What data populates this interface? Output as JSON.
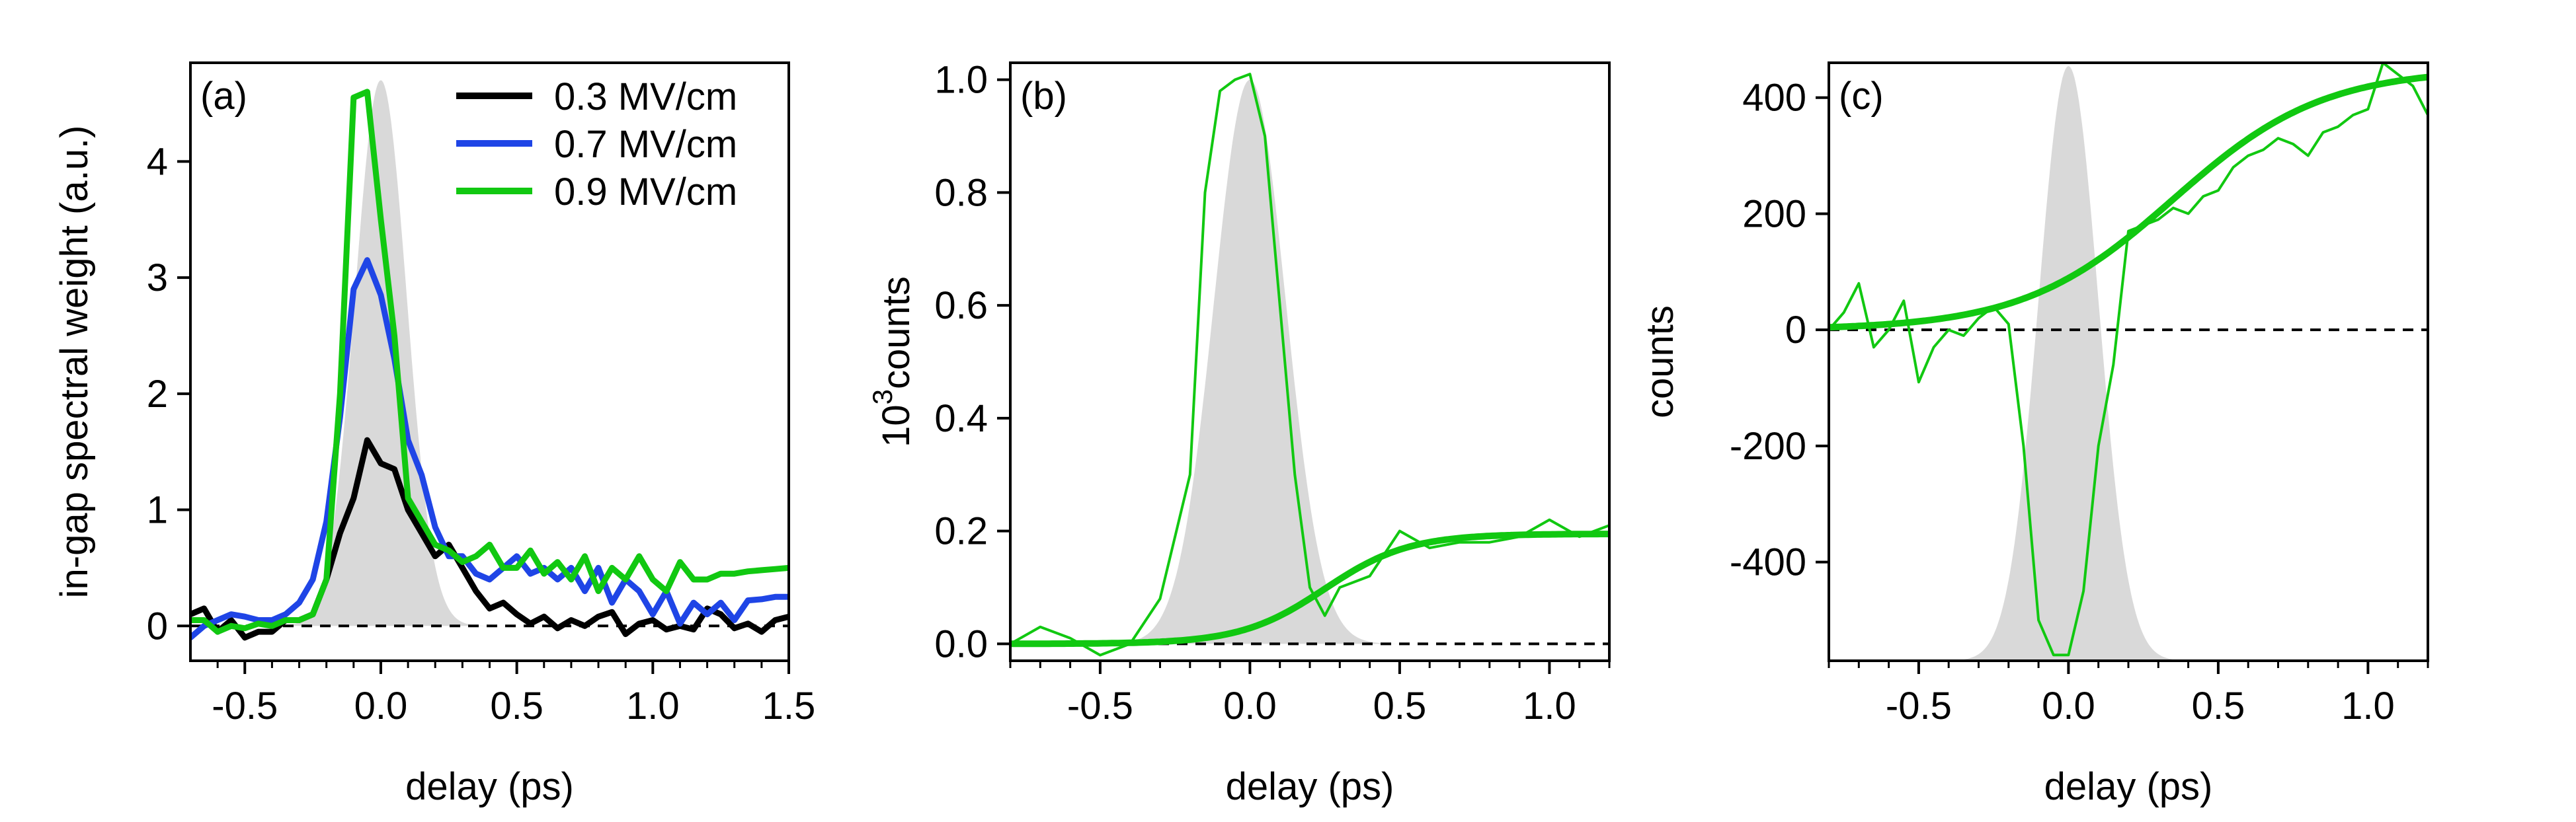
{
  "chart_data": [
    {
      "panel": "(a)",
      "type": "line",
      "xlabel": "delay (ps)",
      "ylabel": "in-gap spectral weight  (a.u.)",
      "xlim": [
        -0.7,
        1.5
      ],
      "ylim": [
        -0.3,
        4.85
      ],
      "xticks": [
        "-0.5",
        "0.0",
        "0.5",
        "1.0",
        "1.5"
      ],
      "xtick_values": [
        -0.5,
        0,
        0.5,
        1.0,
        1.5
      ],
      "yticks": [
        "0",
        "1",
        "2",
        "3",
        "4"
      ],
      "ytick_values": [
        0,
        1,
        2,
        3,
        4
      ],
      "zero_line": true,
      "legend_position": "top-right",
      "shaded_pulse": {
        "color": "#d9d9d9",
        "center": 0.0,
        "sigma": 0.095,
        "amplitude": 4.7
      },
      "series": [
        {
          "name": "0.3 MV/cm",
          "color": "#000000",
          "x": [
            -0.7,
            -0.65,
            -0.6,
            -0.55,
            -0.5,
            -0.45,
            -0.4,
            -0.35,
            -0.3,
            -0.25,
            -0.2,
            -0.15,
            -0.1,
            -0.05,
            0,
            0.05,
            0.1,
            0.15,
            0.2,
            0.25,
            0.3,
            0.35,
            0.4,
            0.45,
            0.5,
            0.55,
            0.6,
            0.65,
            0.7,
            0.75,
            0.8,
            0.85,
            0.9,
            0.95,
            1.0,
            1.05,
            1.1,
            1.15,
            1.2,
            1.25,
            1.3,
            1.35,
            1.4,
            1.45,
            1.5
          ],
          "y": [
            0.1,
            0.15,
            -0.05,
            0.05,
            -0.1,
            -0.05,
            -0.05,
            0.05,
            0.05,
            0.1,
            0.4,
            0.8,
            1.1,
            1.6,
            1.4,
            1.35,
            1.0,
            0.8,
            0.6,
            0.7,
            0.5,
            0.3,
            0.15,
            0.2,
            0.1,
            0.02,
            0.08,
            -0.02,
            0.05,
            0.0,
            0.08,
            0.12,
            -0.07,
            0.02,
            0.05,
            -0.03,
            0.0,
            -0.03,
            0.15,
            0.1,
            -0.02,
            0.02,
            -0.05,
            0.05,
            0.08
          ]
        },
        {
          "name": "0.7 MV/cm",
          "color": "#1f45e6",
          "x": [
            -0.7,
            -0.65,
            -0.6,
            -0.55,
            -0.5,
            -0.45,
            -0.4,
            -0.35,
            -0.3,
            -0.25,
            -0.2,
            -0.15,
            -0.1,
            -0.05,
            0,
            0.05,
            0.1,
            0.15,
            0.2,
            0.25,
            0.3,
            0.35,
            0.4,
            0.45,
            0.5,
            0.55,
            0.6,
            0.65,
            0.7,
            0.75,
            0.8,
            0.85,
            0.9,
            0.95,
            1.0,
            1.05,
            1.1,
            1.15,
            1.2,
            1.25,
            1.3,
            1.35,
            1.4,
            1.45,
            1.5
          ],
          "y": [
            -0.1,
            0.0,
            0.05,
            0.1,
            0.08,
            0.05,
            0.05,
            0.1,
            0.2,
            0.4,
            0.9,
            1.8,
            2.9,
            3.15,
            2.85,
            2.3,
            1.6,
            1.3,
            0.85,
            0.6,
            0.6,
            0.45,
            0.4,
            0.5,
            0.6,
            0.45,
            0.5,
            0.4,
            0.5,
            0.3,
            0.5,
            0.2,
            0.4,
            0.3,
            0.1,
            0.3,
            0.02,
            0.2,
            0.1,
            0.2,
            0.05,
            0.22,
            0.23,
            0.25,
            0.25
          ]
        },
        {
          "name": "0.9 MV/cm",
          "color": "#11c811",
          "x": [
            -0.7,
            -0.65,
            -0.6,
            -0.55,
            -0.5,
            -0.45,
            -0.4,
            -0.35,
            -0.3,
            -0.25,
            -0.2,
            -0.15,
            -0.1,
            -0.05,
            0,
            0.05,
            0.1,
            0.15,
            0.2,
            0.25,
            0.3,
            0.35,
            0.4,
            0.45,
            0.5,
            0.55,
            0.6,
            0.65,
            0.7,
            0.75,
            0.8,
            0.85,
            0.9,
            0.95,
            1.0,
            1.05,
            1.1,
            1.15,
            1.2,
            1.25,
            1.3,
            1.35,
            1.4,
            1.45,
            1.5
          ],
          "y": [
            0.05,
            0.05,
            -0.05,
            0.0,
            -0.02,
            0.02,
            0.0,
            0.05,
            0.05,
            0.1,
            0.4,
            2.0,
            4.55,
            4.6,
            3.5,
            2.5,
            1.1,
            0.9,
            0.7,
            0.65,
            0.55,
            0.6,
            0.7,
            0.5,
            0.5,
            0.65,
            0.45,
            0.55,
            0.4,
            0.6,
            0.3,
            0.5,
            0.4,
            0.6,
            0.4,
            0.3,
            0.55,
            0.4,
            0.4,
            0.45,
            0.45,
            0.47,
            0.48,
            0.49,
            0.5
          ]
        }
      ]
    },
    {
      "panel": "(b)",
      "type": "line",
      "xlabel": "delay (ps)",
      "ylabel": "10^3counts",
      "ylabel_base": "10",
      "ylabel_exp": "3",
      "ylabel_rest": "counts",
      "xlim": [
        -0.8,
        1.2
      ],
      "ylim": [
        -0.03,
        1.03
      ],
      "xticks": [
        "-0.5",
        "0.0",
        "0.5",
        "1.0"
      ],
      "xtick_values": [
        -0.5,
        0,
        0.5,
        1.0
      ],
      "yticks": [
        "0.0",
        "0.2",
        "0.4",
        "0.6",
        "0.8",
        "1.0"
      ],
      "ytick_values": [
        0,
        0.2,
        0.4,
        0.6,
        0.8,
        1.0
      ],
      "zero_line": true,
      "shaded_pulse": {
        "color": "#d9d9d9",
        "center": 0.0,
        "sigma": 0.12,
        "amplitude": 1.0
      },
      "series": [
        {
          "name": "",
          "color": "#11c811",
          "width": "thin",
          "x": [
            -0.8,
            -0.7,
            -0.6,
            -0.5,
            -0.4,
            -0.3,
            -0.2,
            -0.15,
            -0.1,
            -0.05,
            0,
            0.05,
            0.1,
            0.15,
            0.2,
            0.25,
            0.3,
            0.4,
            0.5,
            0.6,
            0.7,
            0.8,
            0.9,
            1.0,
            1.1,
            1.2
          ],
          "y": [
            0.0,
            0.03,
            0.01,
            -0.02,
            0.0,
            0.08,
            0.3,
            0.8,
            0.98,
            1.0,
            1.01,
            0.9,
            0.6,
            0.3,
            0.1,
            0.05,
            0.1,
            0.12,
            0.2,
            0.17,
            0.18,
            0.18,
            0.19,
            0.22,
            0.19,
            0.21
          ]
        },
        {
          "name": "",
          "color": "#11c811",
          "width": "thick",
          "kind": "fit",
          "fit": {
            "model": "step",
            "baseline": 0,
            "amplitude": 0.195,
            "center": 0.25,
            "width": 0.28
          },
          "x": [
            -0.8,
            1.2
          ]
        }
      ]
    },
    {
      "panel": "(c)",
      "type": "line",
      "xlabel": "delay (ps)",
      "ylabel": "counts",
      "xlim": [
        -0.8,
        1.2
      ],
      "ylim": [
        -570,
        460
      ],
      "xticks": [
        "-0.5",
        "0.0",
        "0.5",
        "1.0"
      ],
      "xtick_values": [
        -0.5,
        0,
        0.5,
        1.0
      ],
      "yticks": [
        "-400",
        "-200",
        "0",
        "200",
        "400"
      ],
      "ytick_values": [
        -400,
        -200,
        0,
        200,
        400
      ],
      "zero_line": true,
      "shaded_pulse": {
        "color": "#d9d9d9",
        "center": 0.0,
        "sigma": 0.1,
        "amplitude_from_bottom": true
      },
      "series": [
        {
          "name": "",
          "color": "#11c811",
          "width": "thin",
          "x": [
            -0.8,
            -0.75,
            -0.7,
            -0.65,
            -0.6,
            -0.55,
            -0.5,
            -0.45,
            -0.4,
            -0.35,
            -0.3,
            -0.25,
            -0.2,
            -0.15,
            -0.1,
            -0.05,
            0,
            0.05,
            0.1,
            0.15,
            0.2,
            0.25,
            0.3,
            0.35,
            0.4,
            0.45,
            0.5,
            0.55,
            0.6,
            0.65,
            0.7,
            0.75,
            0.8,
            0.85,
            0.9,
            0.95,
            1.0,
            1.05,
            1.1,
            1.15,
            1.2
          ],
          "y": [
            0,
            30,
            80,
            -30,
            0,
            50,
            -90,
            -30,
            0,
            -10,
            20,
            40,
            10,
            -200,
            -500,
            -560,
            -560,
            -450,
            -200,
            -60,
            170,
            180,
            190,
            210,
            200,
            230,
            240,
            280,
            300,
            310,
            330,
            320,
            300,
            340,
            350,
            370,
            380,
            460,
            440,
            420,
            370
          ]
        },
        {
          "name": "",
          "color": "#11c811",
          "width": "thick",
          "kind": "fit",
          "fit": {
            "model": "step",
            "baseline": 0,
            "amplitude": 450,
            "center": 0.35,
            "width": 0.5
          },
          "x": [
            -0.8,
            1.2
          ]
        }
      ]
    }
  ]
}
